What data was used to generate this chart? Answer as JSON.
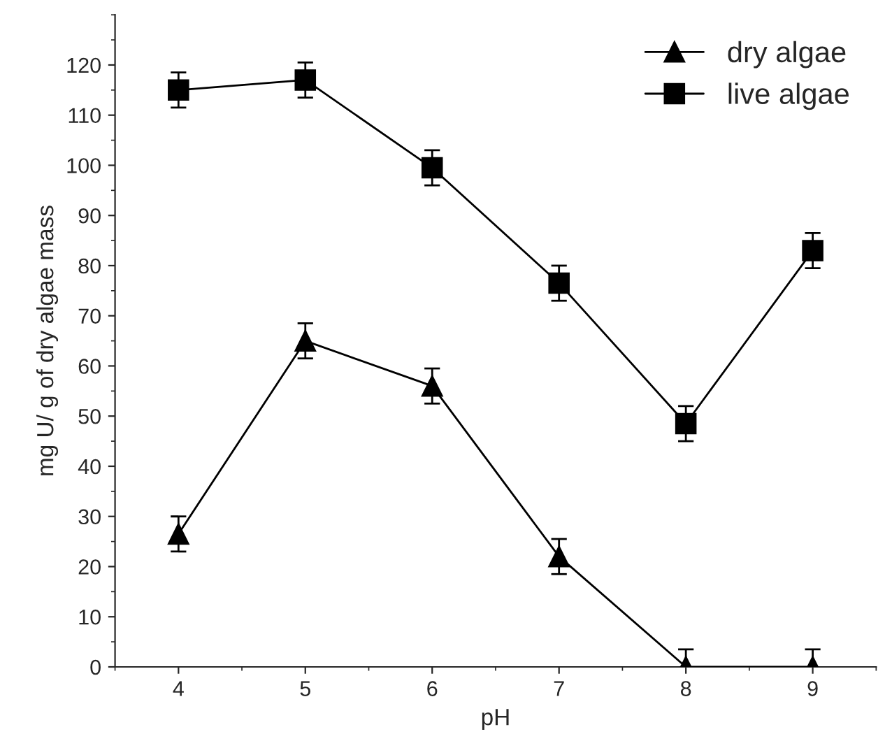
{
  "chart_data": {
    "type": "line",
    "xlabel": "pH",
    "ylabel": "mg U/ g of dry algae mass",
    "x": [
      4,
      5,
      6,
      7,
      8,
      9
    ],
    "series": [
      {
        "name": "dry algae",
        "color": "#000000",
        "marker": "triangle",
        "values": [
          26.5,
          65,
          56,
          22,
          0,
          0
        ],
        "errors": [
          3.5,
          3.5,
          3.5,
          3.5,
          3.5,
          3.5
        ]
      },
      {
        "name": "live algae",
        "color": "#000000",
        "marker": "square",
        "values": [
          115,
          117,
          99.5,
          76.5,
          48.5,
          83
        ],
        "errors": [
          3.5,
          3.5,
          3.5,
          3.5,
          3.5,
          3.5
        ]
      }
    ],
    "xlim": [
      3.5,
      9.5
    ],
    "xticks": [
      4,
      5,
      6,
      7,
      8,
      9
    ],
    "ylim": [
      0,
      130
    ],
    "yticks": [
      0,
      10,
      20,
      30,
      40,
      50,
      60,
      70,
      80,
      90,
      100,
      110,
      120
    ],
    "grid": false,
    "legend": "top right",
    "line_style": "solid"
  }
}
